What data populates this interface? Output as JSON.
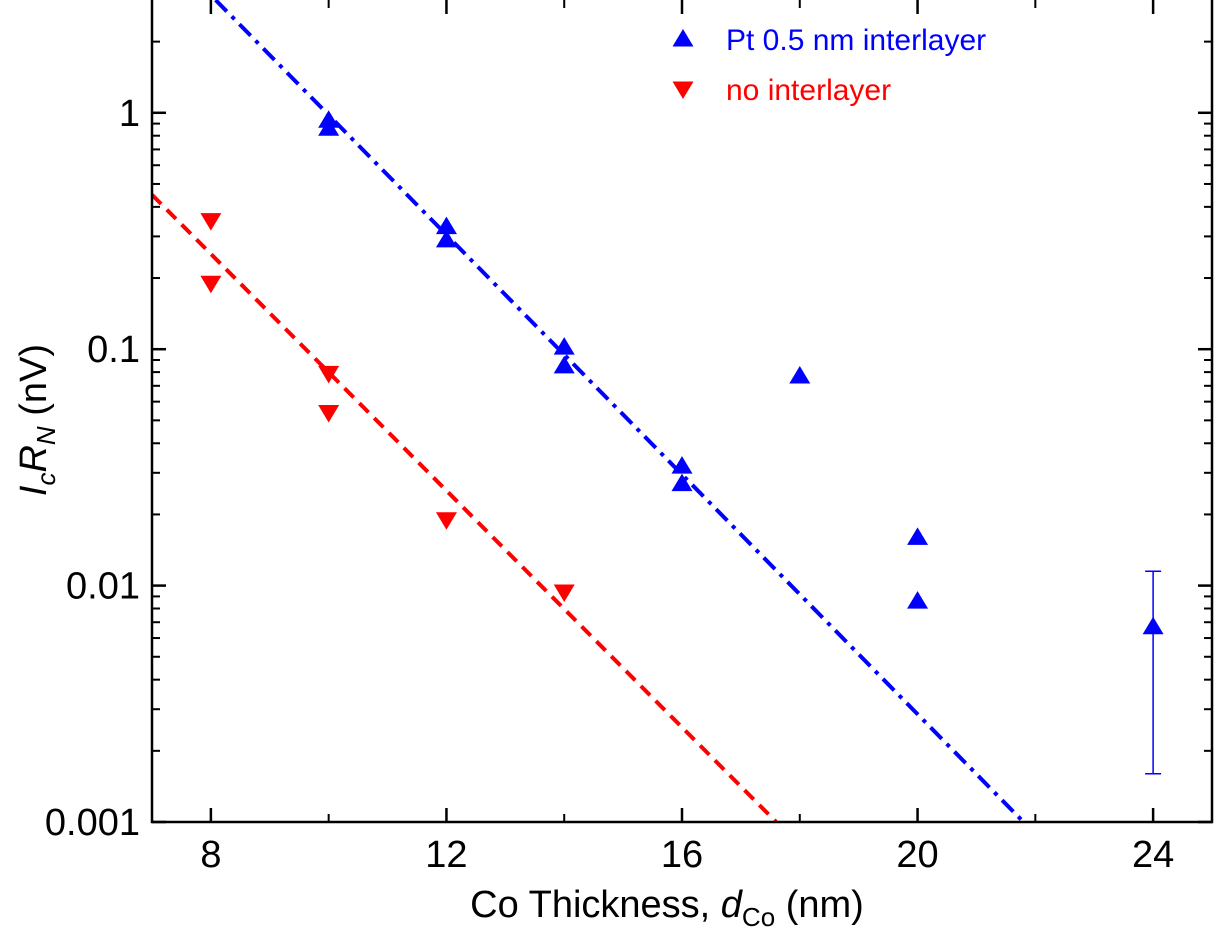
{
  "chart_data": {
    "type": "scatter",
    "x_scale": "linear",
    "y_scale": "log",
    "xlim": [
      7,
      25
    ],
    "ylim": [
      0.001,
      3
    ],
    "x_ticks": [
      "8",
      "12",
      "16",
      "20",
      "24"
    ],
    "y_ticks": [
      "0.001",
      "0.01",
      "0.1",
      "1"
    ],
    "xlabel": {
      "prefix": "Co Thickness, ",
      "var": "d",
      "sub": "Co",
      "suffix": " (nm)"
    },
    "ylabel": {
      "v1": "I",
      "s1": "c",
      "v2": "R",
      "s2": "N",
      "suffix": " (nV)"
    },
    "grid": false,
    "legend_position": "top-right",
    "series": [
      {
        "name": "Pt 0.5 nm interlayer",
        "color": "#0000ff",
        "marker": "triangle-up",
        "points": [
          {
            "x": 10,
            "y": 0.93
          },
          {
            "x": 10,
            "y": 0.86
          },
          {
            "x": 12,
            "y": 0.33
          },
          {
            "x": 12,
            "y": 0.29
          },
          {
            "x": 14,
            "y": 0.102
          },
          {
            "x": 14,
            "y": 0.085
          },
          {
            "x": 16,
            "y": 0.032
          },
          {
            "x": 16,
            "y": 0.027
          },
          {
            "x": 18,
            "y": 0.077
          },
          {
            "x": 20,
            "y": 0.016
          },
          {
            "x": 20,
            "y": 0.0086
          },
          {
            "x": 24,
            "y": 0.0067,
            "err_low": 0.0016,
            "err_high": 0.0115
          }
        ],
        "fit": {
          "style": "dash-dot",
          "x": [
            8.08,
            21.8
          ],
          "y": [
            3.0,
            0.001
          ]
        }
      },
      {
        "name": "no interlayer",
        "color": "#ff0000",
        "marker": "triangle-down",
        "points": [
          {
            "x": 8,
            "y": 0.35
          },
          {
            "x": 8,
            "y": 0.19
          },
          {
            "x": 10,
            "y": 0.079
          },
          {
            "x": 10,
            "y": 0.054
          },
          {
            "x": 12,
            "y": 0.019
          },
          {
            "x": 14,
            "y": 0.0094
          }
        ],
        "fit": {
          "style": "dashed",
          "x": [
            7.0,
            17.6
          ],
          "y": [
            0.45,
            0.001
          ]
        }
      }
    ]
  }
}
